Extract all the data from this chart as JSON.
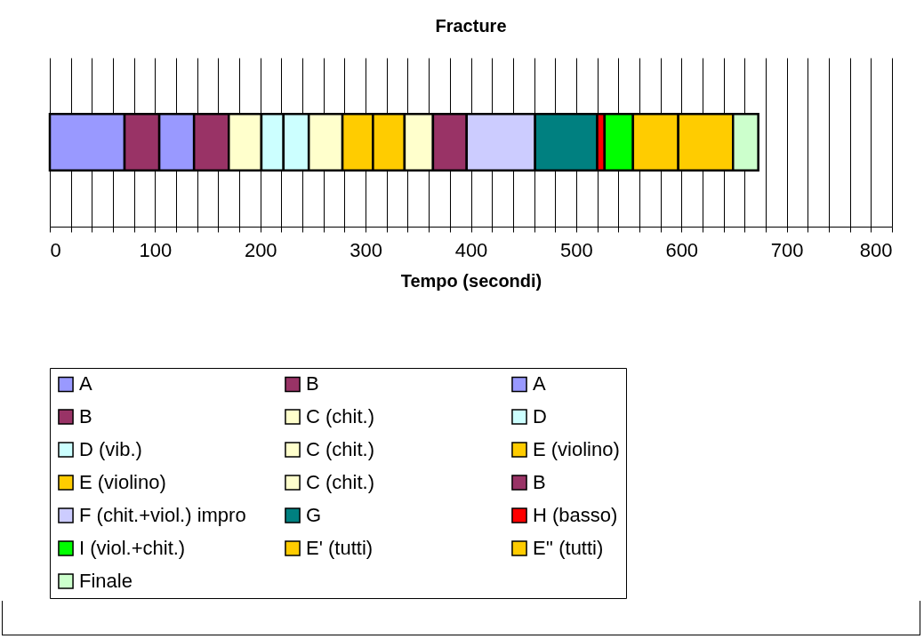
{
  "chart_data": {
    "type": "bar",
    "orientation": "horizontal",
    "stacked": true,
    "title": "Fracture",
    "xlabel": "Tempo (secondi)",
    "categories": [
      null
    ],
    "series": [
      {
        "name": "A",
        "color": "#9999ff",
        "values": [
          71
        ]
      },
      {
        "name": "B",
        "color": "#993366",
        "values": [
          33
        ]
      },
      {
        "name": "A",
        "color": "#9999ff",
        "values": [
          33
        ]
      },
      {
        "name": "B",
        "color": "#993366",
        "values": [
          33
        ]
      },
      {
        "name": "C (chit.)",
        "color": "#ffffcc",
        "values": [
          31
        ]
      },
      {
        "name": "D",
        "color": "#ccffff",
        "values": [
          21
        ]
      },
      {
        "name": "D (vib.)",
        "color": "#ccffff",
        "values": [
          24
        ]
      },
      {
        "name": "C (chit.)",
        "color": "#ffffcc",
        "values": [
          32
        ]
      },
      {
        "name": "E (violino)",
        "color": "#ffcc00",
        "values": [
          29
        ]
      },
      {
        "name": "E (violino)",
        "color": "#ffcc00",
        "values": [
          30
        ]
      },
      {
        "name": "C (chit.)",
        "color": "#ffffcc",
        "values": [
          27
        ]
      },
      {
        "name": "B",
        "color": "#993366",
        "values": [
          32
        ]
      },
      {
        "name": "F (chit.+viol.) impro",
        "color": "#ccccff",
        "values": [
          65
        ]
      },
      {
        "name": "G",
        "color": "#008080",
        "values": [
          59
        ]
      },
      {
        "name": "H (basso)",
        "color": "#ff0000",
        "values": [
          7
        ]
      },
      {
        "name": "I (viol.+chit.)",
        "color": "#00ff00",
        "values": [
          27
        ]
      },
      {
        "name": "E' (tutti)",
        "color": "#ffcc00",
        "values": [
          43
        ]
      },
      {
        "name": "E'' (tutti)",
        "color": "#ffcc00",
        "values": [
          52
        ]
      },
      {
        "name": "Finale",
        "color": "#ccffcc",
        "values": [
          24
        ]
      }
    ],
    "xlim": [
      0,
      800
    ],
    "xticks": [
      0,
      {
        "value": 20,
        "label": null
      },
      {
        "value": 40,
        "label": null
      },
      {
        "value": 60,
        "label": null
      },
      {
        "value": 80,
        "label": null
      },
      100,
      {
        "value": 120,
        "label": null
      },
      {
        "value": 140,
        "label": null
      },
      {
        "value": 160,
        "label": null
      },
      {
        "value": 180,
        "label": null
      },
      200,
      {
        "value": 220,
        "label": null
      },
      {
        "value": 240,
        "label": null
      },
      {
        "value": 260,
        "label": null
      },
      {
        "value": 280,
        "label": null
      },
      300,
      {
        "value": 320,
        "label": null
      },
      {
        "value": 340,
        "label": null
      },
      {
        "value": 360,
        "label": null
      },
      {
        "value": 380,
        "label": null
      },
      400,
      {
        "value": 420,
        "label": null
      },
      {
        "value": 440,
        "label": null
      },
      {
        "value": 460,
        "label": null
      },
      {
        "value": 480,
        "label": null
      },
      500,
      {
        "value": 520,
        "label": null
      },
      {
        "value": 540,
        "label": null
      },
      {
        "value": 560,
        "label": null
      },
      {
        "value": 580,
        "label": null
      },
      600,
      {
        "value": 620,
        "label": null
      },
      {
        "value": 640,
        "label": null
      },
      {
        "value": 660,
        "label": null
      },
      {
        "value": 680,
        "label": null
      },
      700,
      {
        "value": 720,
        "label": null
      },
      {
        "value": 740,
        "label": null
      },
      {
        "value": 760,
        "label": null
      },
      {
        "value": 780,
        "label": null
      },
      800
    ],
    "grid": "x",
    "legend": "bottom"
  }
}
